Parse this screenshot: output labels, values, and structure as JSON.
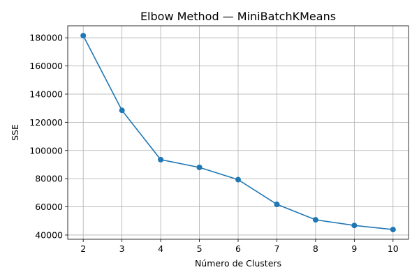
{
  "chart_data": {
    "type": "line",
    "title": "Elbow Method — MiniBatchKMeans",
    "xlabel": "Número de Clusters",
    "ylabel": "SSE",
    "x": [
      2,
      3,
      4,
      5,
      6,
      7,
      8,
      9,
      10
    ],
    "series": [
      {
        "values": [
          181500,
          128500,
          93500,
          88000,
          79300,
          61800,
          50800,
          46800,
          43900
        ],
        "color": "#1f77b4",
        "marker": "circle"
      }
    ],
    "xlim": [
      1.6,
      10.4
    ],
    "ylim": [
      37000,
      188500
    ],
    "xticks": [
      2,
      3,
      4,
      5,
      6,
      7,
      8,
      9,
      10
    ],
    "yticks": [
      40000,
      60000,
      80000,
      100000,
      120000,
      140000,
      160000,
      180000
    ],
    "grid": true
  }
}
